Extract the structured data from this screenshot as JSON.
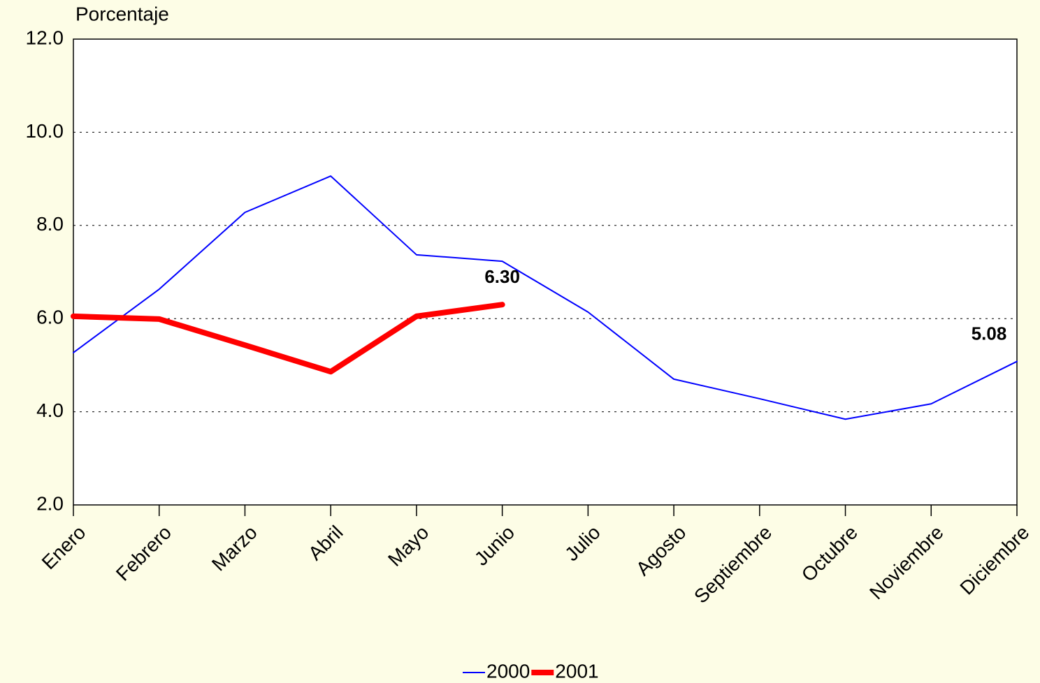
{
  "chart_data": {
    "type": "line",
    "y_label": "Porcentaje",
    "categories": [
      "Enero",
      "Febrero",
      "Marzo",
      "Abril",
      "Mayo",
      "Junio",
      "Julio",
      "Agosto",
      "Septiembre",
      "Octubre",
      "Noviembre",
      "Diciembre"
    ],
    "series": [
      {
        "name": "2000",
        "color": "#0000ff",
        "width": 2,
        "values": [
          5.27,
          6.63,
          8.28,
          9.06,
          7.37,
          7.23,
          6.14,
          4.7,
          4.28,
          3.84,
          4.17,
          5.08
        ],
        "value_labels": [
          null,
          null,
          null,
          null,
          null,
          null,
          null,
          null,
          null,
          null,
          null,
          "5.08"
        ]
      },
      {
        "name": "2001",
        "color": "#ff0000",
        "width": 8,
        "values": [
          6.05,
          5.99,
          5.43,
          4.86,
          6.05,
          6.3,
          null,
          null,
          null,
          null,
          null,
          null
        ],
        "value_labels": [
          null,
          null,
          null,
          null,
          null,
          "6.30",
          null,
          null,
          null,
          null,
          null,
          null
        ]
      }
    ],
    "ylim": [
      2,
      12
    ],
    "yticks": [
      {
        "value": 2,
        "label": "2.0"
      },
      {
        "value": 4,
        "label": "4.0"
      },
      {
        "value": 6,
        "label": "6.0"
      },
      {
        "value": 8,
        "label": "8.0"
      },
      {
        "value": 10,
        "label": "10.0"
      },
      {
        "value": 12,
        "label": "12.0"
      }
    ],
    "grid": true,
    "legend": "bottom"
  }
}
